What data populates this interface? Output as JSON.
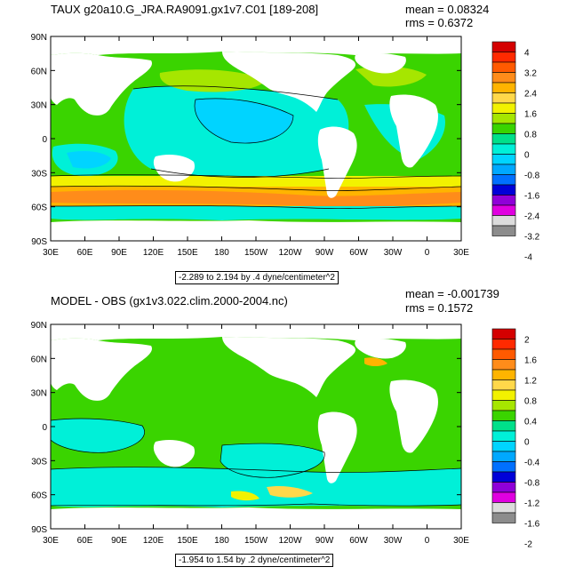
{
  "panels": [
    {
      "title": "TAUX g20a10.G_JRA.RA9091.gx1v7.C01 [189-208]",
      "mean": "mean = 0.08324",
      "rms": "rms = 0.6372",
      "range": "-2.289 to 2.194 by .4 dyne/centimeter^2",
      "lat_ticks": [
        "90N",
        "60N",
        "30N",
        "0",
        "30S",
        "60S",
        "90S"
      ],
      "lon_ticks": [
        "30E",
        "60E",
        "90E",
        "120E",
        "150E",
        "180",
        "150W",
        "120W",
        "90W",
        "60W",
        "30W",
        "0",
        "30E"
      ],
      "colorbar_labels": [
        "4",
        "3.2",
        "2.4",
        "1.6",
        "0.8",
        "0",
        "-0.8",
        "-1.6",
        "-2.4",
        "-3.2",
        "-4"
      ],
      "colorbar_colors": [
        "#d40000",
        "#ff2a00",
        "#ff5a00",
        "#ff8c1a",
        "#ffb400",
        "#ffd84a",
        "#f2f200",
        "#a6e600",
        "#3ad400",
        "#00e08a",
        "#00f0d8",
        "#00d4ff",
        "#00a8ff",
        "#0070ff",
        "#0000d8",
        "#9000d8",
        "#e000e0",
        "#dcdcdc",
        "#8c8c8c"
      ]
    },
    {
      "title": "MODEL - OBS (gx1v3.022.clim.2000-2004.nc)",
      "mean": "mean = -0.001739",
      "rms": "rms = 0.1572",
      "range": "-1.954 to 1.54 by .2 dyne/centimeter^2",
      "lat_ticks": [
        "90N",
        "60N",
        "30N",
        "0",
        "30S",
        "60S",
        "90S"
      ],
      "lon_ticks": [
        "30E",
        "60E",
        "90E",
        "120E",
        "150E",
        "180",
        "150W",
        "120W",
        "90W",
        "60W",
        "30W",
        "0",
        "30E"
      ],
      "colorbar_labels": [
        "2",
        "1.6",
        "1.2",
        "0.8",
        "0.4",
        "0",
        "-0.4",
        "-0.8",
        "-1.2",
        "-1.6",
        "-2"
      ],
      "colorbar_colors": [
        "#d40000",
        "#ff2a00",
        "#ff5a00",
        "#ff8c1a",
        "#ffb400",
        "#ffd84a",
        "#f2f200",
        "#a6e600",
        "#3ad400",
        "#00e08a",
        "#00f0d8",
        "#00d4ff",
        "#00a8ff",
        "#0070ff",
        "#0000d8",
        "#9000d8",
        "#e000e0",
        "#dcdcdc",
        "#8c8c8c"
      ]
    }
  ],
  "chart_data": [
    {
      "type": "heatmap",
      "title": "TAUX g20a10.G_JRA.RA9091.gx1v7.C01 [189-208]",
      "xlabel": "",
      "ylabel": "",
      "xlim": [
        "30E",
        "30E"
      ],
      "ylim": [
        "90S",
        "90N"
      ],
      "x_ticks": [
        "30E",
        "60E",
        "90E",
        "120E",
        "150E",
        "180",
        "150W",
        "120W",
        "90W",
        "60W",
        "30W",
        "0",
        "30E"
      ],
      "y_ticks": [
        "90N",
        "60N",
        "30N",
        "0",
        "30S",
        "60S",
        "90S"
      ],
      "colorbar_levels": [
        4,
        3.2,
        2.4,
        1.6,
        0.8,
        0,
        -0.8,
        -1.6,
        -2.4,
        -3.2,
        -4
      ],
      "mean": 0.08324,
      "rms": 0.6372,
      "min": -2.289,
      "max": 2.194,
      "contour_interval": 0.4,
      "units": "dyne/centimeter^2"
    },
    {
      "type": "heatmap",
      "title": "MODEL - OBS (gx1v3.022.clim.2000-2004.nc)",
      "xlabel": "",
      "ylabel": "",
      "xlim": [
        "30E",
        "30E"
      ],
      "ylim": [
        "90S",
        "90N"
      ],
      "x_ticks": [
        "30E",
        "60E",
        "90E",
        "120E",
        "150E",
        "180",
        "150W",
        "120W",
        "90W",
        "60W",
        "30W",
        "0",
        "30E"
      ],
      "y_ticks": [
        "90N",
        "60N",
        "30N",
        "0",
        "30S",
        "60S",
        "90S"
      ],
      "colorbar_levels": [
        2,
        1.6,
        1.2,
        0.8,
        0.4,
        0,
        -0.4,
        -0.8,
        -1.2,
        -1.6,
        -2
      ],
      "mean": -0.001739,
      "rms": 0.1572,
      "min": -1.954,
      "max": 1.54,
      "contour_interval": 0.2,
      "units": "dyne/centimeter^2"
    }
  ]
}
